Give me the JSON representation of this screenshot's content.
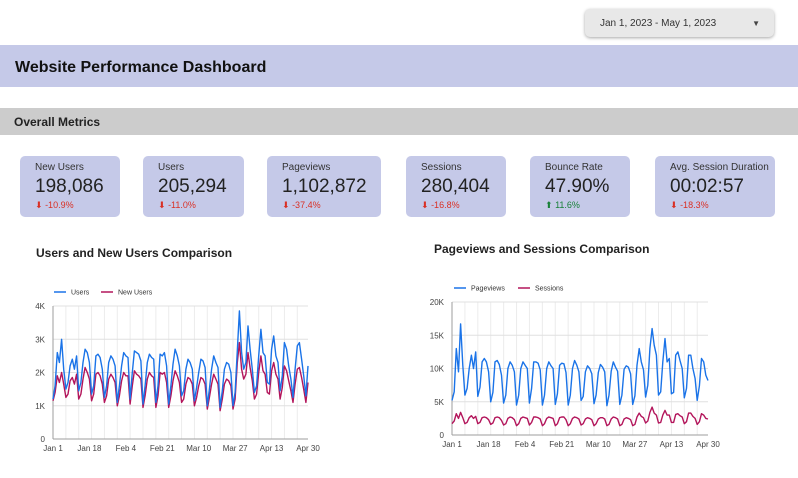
{
  "date_range": {
    "label": "Jan 1, 2023 - May 1, 2023"
  },
  "header": {
    "title": "Website Performance Dashboard"
  },
  "section": {
    "title": "Overall Metrics"
  },
  "colors": {
    "band": "#c5c9e8",
    "series_blue": "#1a73e8",
    "series_pink": "#b3155b",
    "negative": "#d93025",
    "positive": "#188038"
  },
  "metrics": [
    {
      "label": "New Users",
      "value": "198,086",
      "change": "-10.9%",
      "direction": "down"
    },
    {
      "label": "Users",
      "value": "205,294",
      "change": "-11.0%",
      "direction": "down"
    },
    {
      "label": "Pageviews",
      "value": "1,102,872",
      "change": "-37.4%",
      "direction": "down"
    },
    {
      "label": "Sessions",
      "value": "280,404",
      "change": "-16.8%",
      "direction": "down"
    },
    {
      "label": "Bounce Rate",
      "value": "47.90%",
      "change": "11.6%",
      "direction": "up"
    },
    {
      "label": "Avg. Session Duration",
      "value": "00:02:57",
      "change": "-18.3%",
      "direction": "down"
    }
  ],
  "arrow_down": "⬇",
  "arrow_up": "⬆",
  "chart_data": [
    {
      "type": "line",
      "title": "Users and New Users Comparison",
      "xlabel": "",
      "ylabel": "",
      "ylim": [
        0,
        4000
      ],
      "yticks": [
        0,
        1000,
        2000,
        3000,
        4000
      ],
      "ytick_labels": [
        "0",
        "1K",
        "2K",
        "3K",
        "4K"
      ],
      "xtick_labels": [
        "Jan 1",
        "Jan 18",
        "Feb 4",
        "Feb 21",
        "Mar 10",
        "Mar 27",
        "Apr 13",
        "Apr 30"
      ],
      "xtick_days": [
        0,
        17,
        34,
        51,
        68,
        85,
        102,
        119
      ],
      "x_days": 120,
      "legend_position": "top-left",
      "series": [
        {
          "name": "Users",
          "color": "#1a73e8",
          "values": [
            1200,
            1600,
            2600,
            2300,
            3000,
            2100,
            1500,
            1700,
            2200,
            2400,
            2100,
            2500,
            1450,
            1700,
            2300,
            2700,
            2600,
            2300,
            1350,
            1600,
            2500,
            2550,
            2450,
            2100,
            1250,
            1600,
            2300,
            2500,
            2400,
            2200,
            1100,
            1600,
            2200,
            2600,
            2500,
            2450,
            1200,
            2000,
            2650,
            2600,
            2550,
            2350,
            1050,
            1600,
            2300,
            2550,
            2450,
            2400,
            1100,
            1600,
            2550,
            2500,
            2600,
            2200,
            1050,
            1600,
            2250,
            2700,
            2500,
            2200,
            1300,
            1450,
            2100,
            2400,
            2300,
            2100,
            1150,
            1550,
            2000,
            2400,
            2350,
            2150,
            1000,
            1500,
            2100,
            2500,
            2300,
            2150,
            950,
            1450,
            2100,
            2300,
            2250,
            2000,
            1000,
            1400,
            2650,
            3850,
            2600,
            2100,
            2300,
            3400,
            2700,
            2100,
            1400,
            1600,
            2500,
            3300,
            2600,
            2500,
            1700,
            1650,
            2700,
            3100,
            2500,
            2300,
            1450,
            1900,
            2900,
            2700,
            2200,
            1800,
            1250,
            2100,
            2800,
            2900,
            2400,
            1900,
            1300,
            2200
          ]
        },
        {
          "name": "New Users",
          "color": "#b3155b",
          "values": [
            1150,
            1400,
            1900,
            1700,
            2000,
            1650,
            1250,
            1350,
            1750,
            1850,
            1650,
            1950,
            1200,
            1350,
            1800,
            2150,
            2000,
            1800,
            1150,
            1350,
            1950,
            2000,
            1900,
            1650,
            1100,
            1300,
            1800,
            1950,
            1850,
            1700,
            1000,
            1300,
            1750,
            2000,
            1900,
            1900,
            1050,
            1600,
            2050,
            1950,
            1900,
            1800,
            950,
            1300,
            1800,
            2000,
            1900,
            1850,
            950,
            1300,
            2000,
            1950,
            2000,
            1700,
            950,
            1300,
            1750,
            2050,
            1900,
            1700,
            1100,
            1200,
            1650,
            1850,
            1800,
            1650,
            1000,
            1250,
            1600,
            1850,
            1800,
            1650,
            900,
            1250,
            1650,
            1950,
            1800,
            1650,
            850,
            1200,
            1650,
            1800,
            1750,
            1600,
            900,
            1200,
            2300,
            2900,
            2100,
            1800,
            1950,
            2600,
            2150,
            1750,
            1200,
            1350,
            2000,
            2500,
            2050,
            1950,
            1400,
            1350,
            2050,
            2300,
            1950,
            1800,
            1200,
            1550,
            2200,
            2050,
            1750,
            1450,
            1100,
            1650,
            2100,
            2150,
            1850,
            1500,
            1100,
            1700
          ]
        }
      ]
    },
    {
      "type": "line",
      "title": "Pageviews and Sessions Comparison",
      "xlabel": "",
      "ylabel": "",
      "ylim": [
        0,
        20000
      ],
      "yticks": [
        0,
        5000,
        10000,
        15000,
        20000
      ],
      "ytick_labels": [
        "0",
        "5K",
        "10K",
        "15K",
        "20K"
      ],
      "xtick_labels": [
        "Jan 1",
        "Jan 18",
        "Feb 4",
        "Feb 21",
        "Mar 10",
        "Mar 27",
        "Apr 13",
        "Apr 30"
      ],
      "xtick_days": [
        0,
        17,
        34,
        51,
        68,
        85,
        102,
        119
      ],
      "x_days": 120,
      "legend_position": "top-left",
      "series": [
        {
          "name": "Pageviews",
          "color": "#1a73e8",
          "values": [
            5200,
            6500,
            13000,
            9500,
            16700,
            10500,
            6000,
            7000,
            10000,
            12000,
            10000,
            12500,
            5800,
            7200,
            11000,
            11500,
            11000,
            9500,
            5000,
            6400,
            11000,
            11200,
            10600,
            9000,
            4800,
            6000,
            10000,
            11000,
            10500,
            9500,
            4500,
            6000,
            10000,
            11000,
            10500,
            10000,
            4800,
            7000,
            11000,
            11000,
            10800,
            9800,
            4500,
            6000,
            10000,
            11000,
            10400,
            10000,
            4600,
            6200,
            10500,
            10800,
            10700,
            9400,
            4500,
            6000,
            10000,
            11200,
            10500,
            9500,
            5200,
            5800,
            9500,
            10400,
            10000,
            9200,
            4700,
            6000,
            9400,
            10600,
            10200,
            9500,
            4400,
            6000,
            9600,
            11000,
            10200,
            9600,
            4600,
            6000,
            9900,
            10400,
            10200,
            9200,
            4600,
            5900,
            10500,
            13000,
            11000,
            9800,
            5700,
            7500,
            13000,
            16000,
            13500,
            12000,
            6000,
            6500,
            11000,
            14500,
            11000,
            11500,
            6200,
            6400,
            12000,
            12500,
            11200,
            10000,
            5600,
            7000,
            12000,
            12000,
            10000,
            8500,
            5200,
            7400,
            11500,
            11000,
            9000,
            8200
          ]
        },
        {
          "name": "Sessions",
          "color": "#b3155b",
          "values": [
            1700,
            2100,
            3200,
            2500,
            3400,
            2600,
            1700,
            1900,
            2600,
            2900,
            2500,
            2800,
            1700,
            1900,
            2600,
            2700,
            2600,
            2300,
            1600,
            1800,
            2600,
            2700,
            2600,
            2200,
            1500,
            1700,
            2500,
            2700,
            2600,
            2300,
            1400,
            1700,
            2500,
            2700,
            2600,
            2500,
            1500,
            1900,
            2700,
            2700,
            2600,
            2400,
            1400,
            1700,
            2500,
            2700,
            2600,
            2500,
            1400,
            1700,
            2600,
            2700,
            2700,
            2300,
            1400,
            1700,
            2500,
            2700,
            2600,
            2400,
            1500,
            1700,
            2400,
            2600,
            2500,
            2300,
            1400,
            1700,
            2400,
            2600,
            2600,
            2400,
            1400,
            1600,
            2400,
            2700,
            2600,
            2400,
            1400,
            1600,
            2400,
            2600,
            2500,
            2300,
            1400,
            1600,
            2700,
            3300,
            2800,
            2600,
            1800,
            2100,
            3400,
            4200,
            3300,
            3000,
            1800,
            1900,
            3000,
            3700,
            3000,
            3000,
            1900,
            1900,
            3100,
            3200,
            2900,
            2700,
            1700,
            2000,
            3300,
            3300,
            2800,
            2500,
            1600,
            2000,
            3200,
            3000,
            2500,
            2400
          ]
        }
      ]
    }
  ]
}
